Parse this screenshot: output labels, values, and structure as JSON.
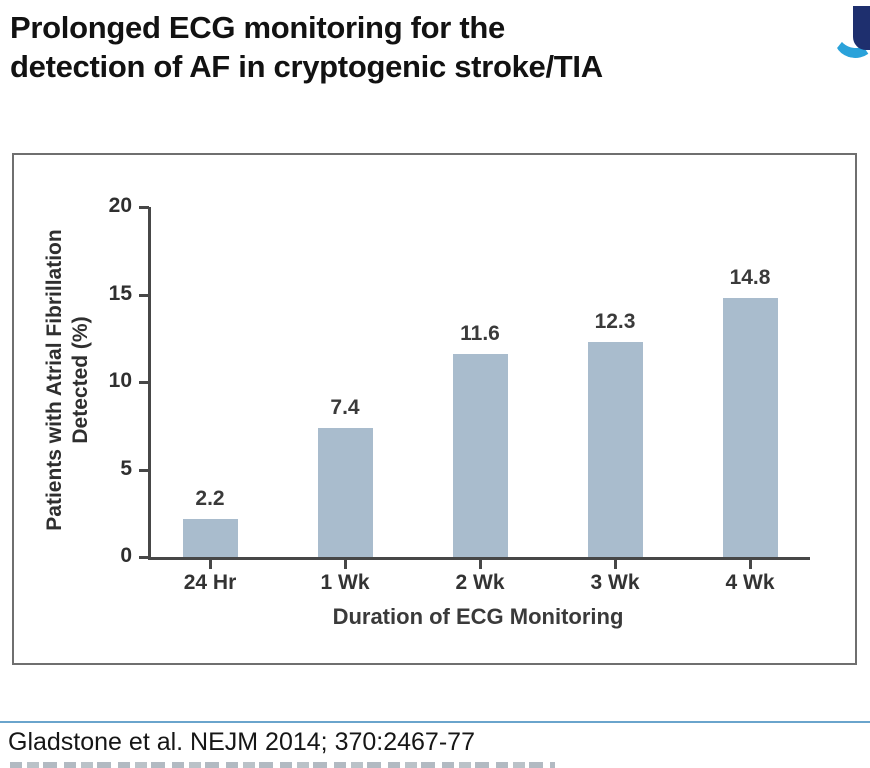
{
  "header": {
    "title_line1": "Prolonged ECG monitoring for the",
    "title_line2": "detection of AF in cryptogenic stroke/TIA"
  },
  "logo": {
    "description": "partial-logo-mark",
    "navy": "#1e2f6e",
    "light_blue": "#2aa2da"
  },
  "footer": {
    "citation": "Gladstone et al. NEJM 2014; 370:2467-77"
  },
  "chart_data": {
    "type": "bar",
    "categories": [
      "24 Hr",
      "1 Wk",
      "2 Wk",
      "3 Wk",
      "4 Wk"
    ],
    "values": [
      2.2,
      7.4,
      11.6,
      12.3,
      14.8
    ],
    "value_labels": [
      "2.2",
      "7.4",
      "11.6",
      "12.3",
      "14.8"
    ],
    "title": "",
    "xlabel": "Duration of ECG Monitoring",
    "ylabel_line1": "Patients with Atrial Fibrillation",
    "ylabel_line2": "Detected (%)",
    "yticks": [
      20,
      15,
      10,
      5,
      0
    ],
    "ylim": [
      0,
      20
    ],
    "grid": false,
    "legend": "none",
    "bar_color": "#a9bccd",
    "axis_color": "#474747"
  }
}
